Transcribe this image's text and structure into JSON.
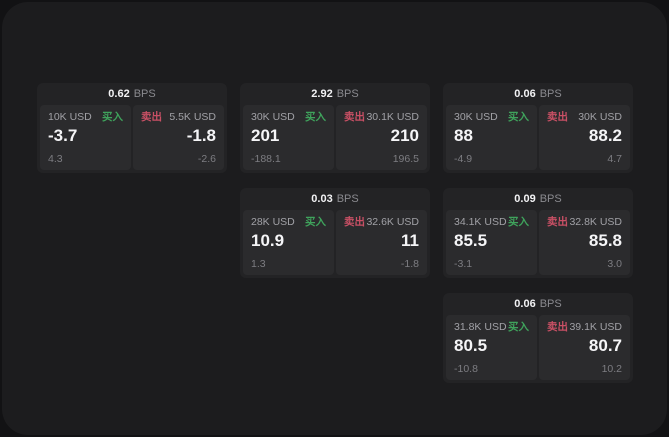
{
  "labels": {
    "buy": "买入",
    "sell": "卖出",
    "bps": "BPS"
  },
  "colors": {
    "background_outer": "#121214",
    "background_panel": "#1c1c1e",
    "card": "#232325",
    "pane": "#2b2b2d",
    "buy_green": "#3fa35c",
    "sell_red": "#c95065",
    "text_primary": "#f5f5f7",
    "text_secondary": "#a1a1a6",
    "text_muted": "#7d7d82"
  },
  "cards": [
    {
      "bps": "0.62",
      "buy": {
        "size": "10K USD",
        "price": "-3.7",
        "delta": "4.3"
      },
      "sell": {
        "size": "5.5K USD",
        "price": "-1.8",
        "delta": "-2.6"
      }
    },
    {
      "bps": "2.92",
      "buy": {
        "size": "30K USD",
        "price": "201",
        "delta": "-188.1"
      },
      "sell": {
        "size": "30.1K USD",
        "price": "210",
        "delta": "196.5"
      }
    },
    {
      "bps": "0.06",
      "buy": {
        "size": "30K USD",
        "price": "88",
        "delta": "-4.9"
      },
      "sell": {
        "size": "30K USD",
        "price": "88.2",
        "delta": "4.7"
      }
    },
    {
      "bps": "0.03",
      "buy": {
        "size": "28K USD",
        "price": "10.9",
        "delta": "1.3"
      },
      "sell": {
        "size": "32.6K USD",
        "price": "11",
        "delta": "-1.8"
      }
    },
    {
      "bps": "0.09",
      "buy": {
        "size": "34.1K USD",
        "price": "85.5",
        "delta": "-3.1"
      },
      "sell": {
        "size": "32.8K USD",
        "price": "85.8",
        "delta": "3.0"
      }
    },
    {
      "bps": "0.06",
      "buy": {
        "size": "31.8K USD",
        "price": "80.5",
        "delta": "-10.8"
      },
      "sell": {
        "size": "39.1K USD",
        "price": "80.7",
        "delta": "10.2"
      }
    }
  ]
}
